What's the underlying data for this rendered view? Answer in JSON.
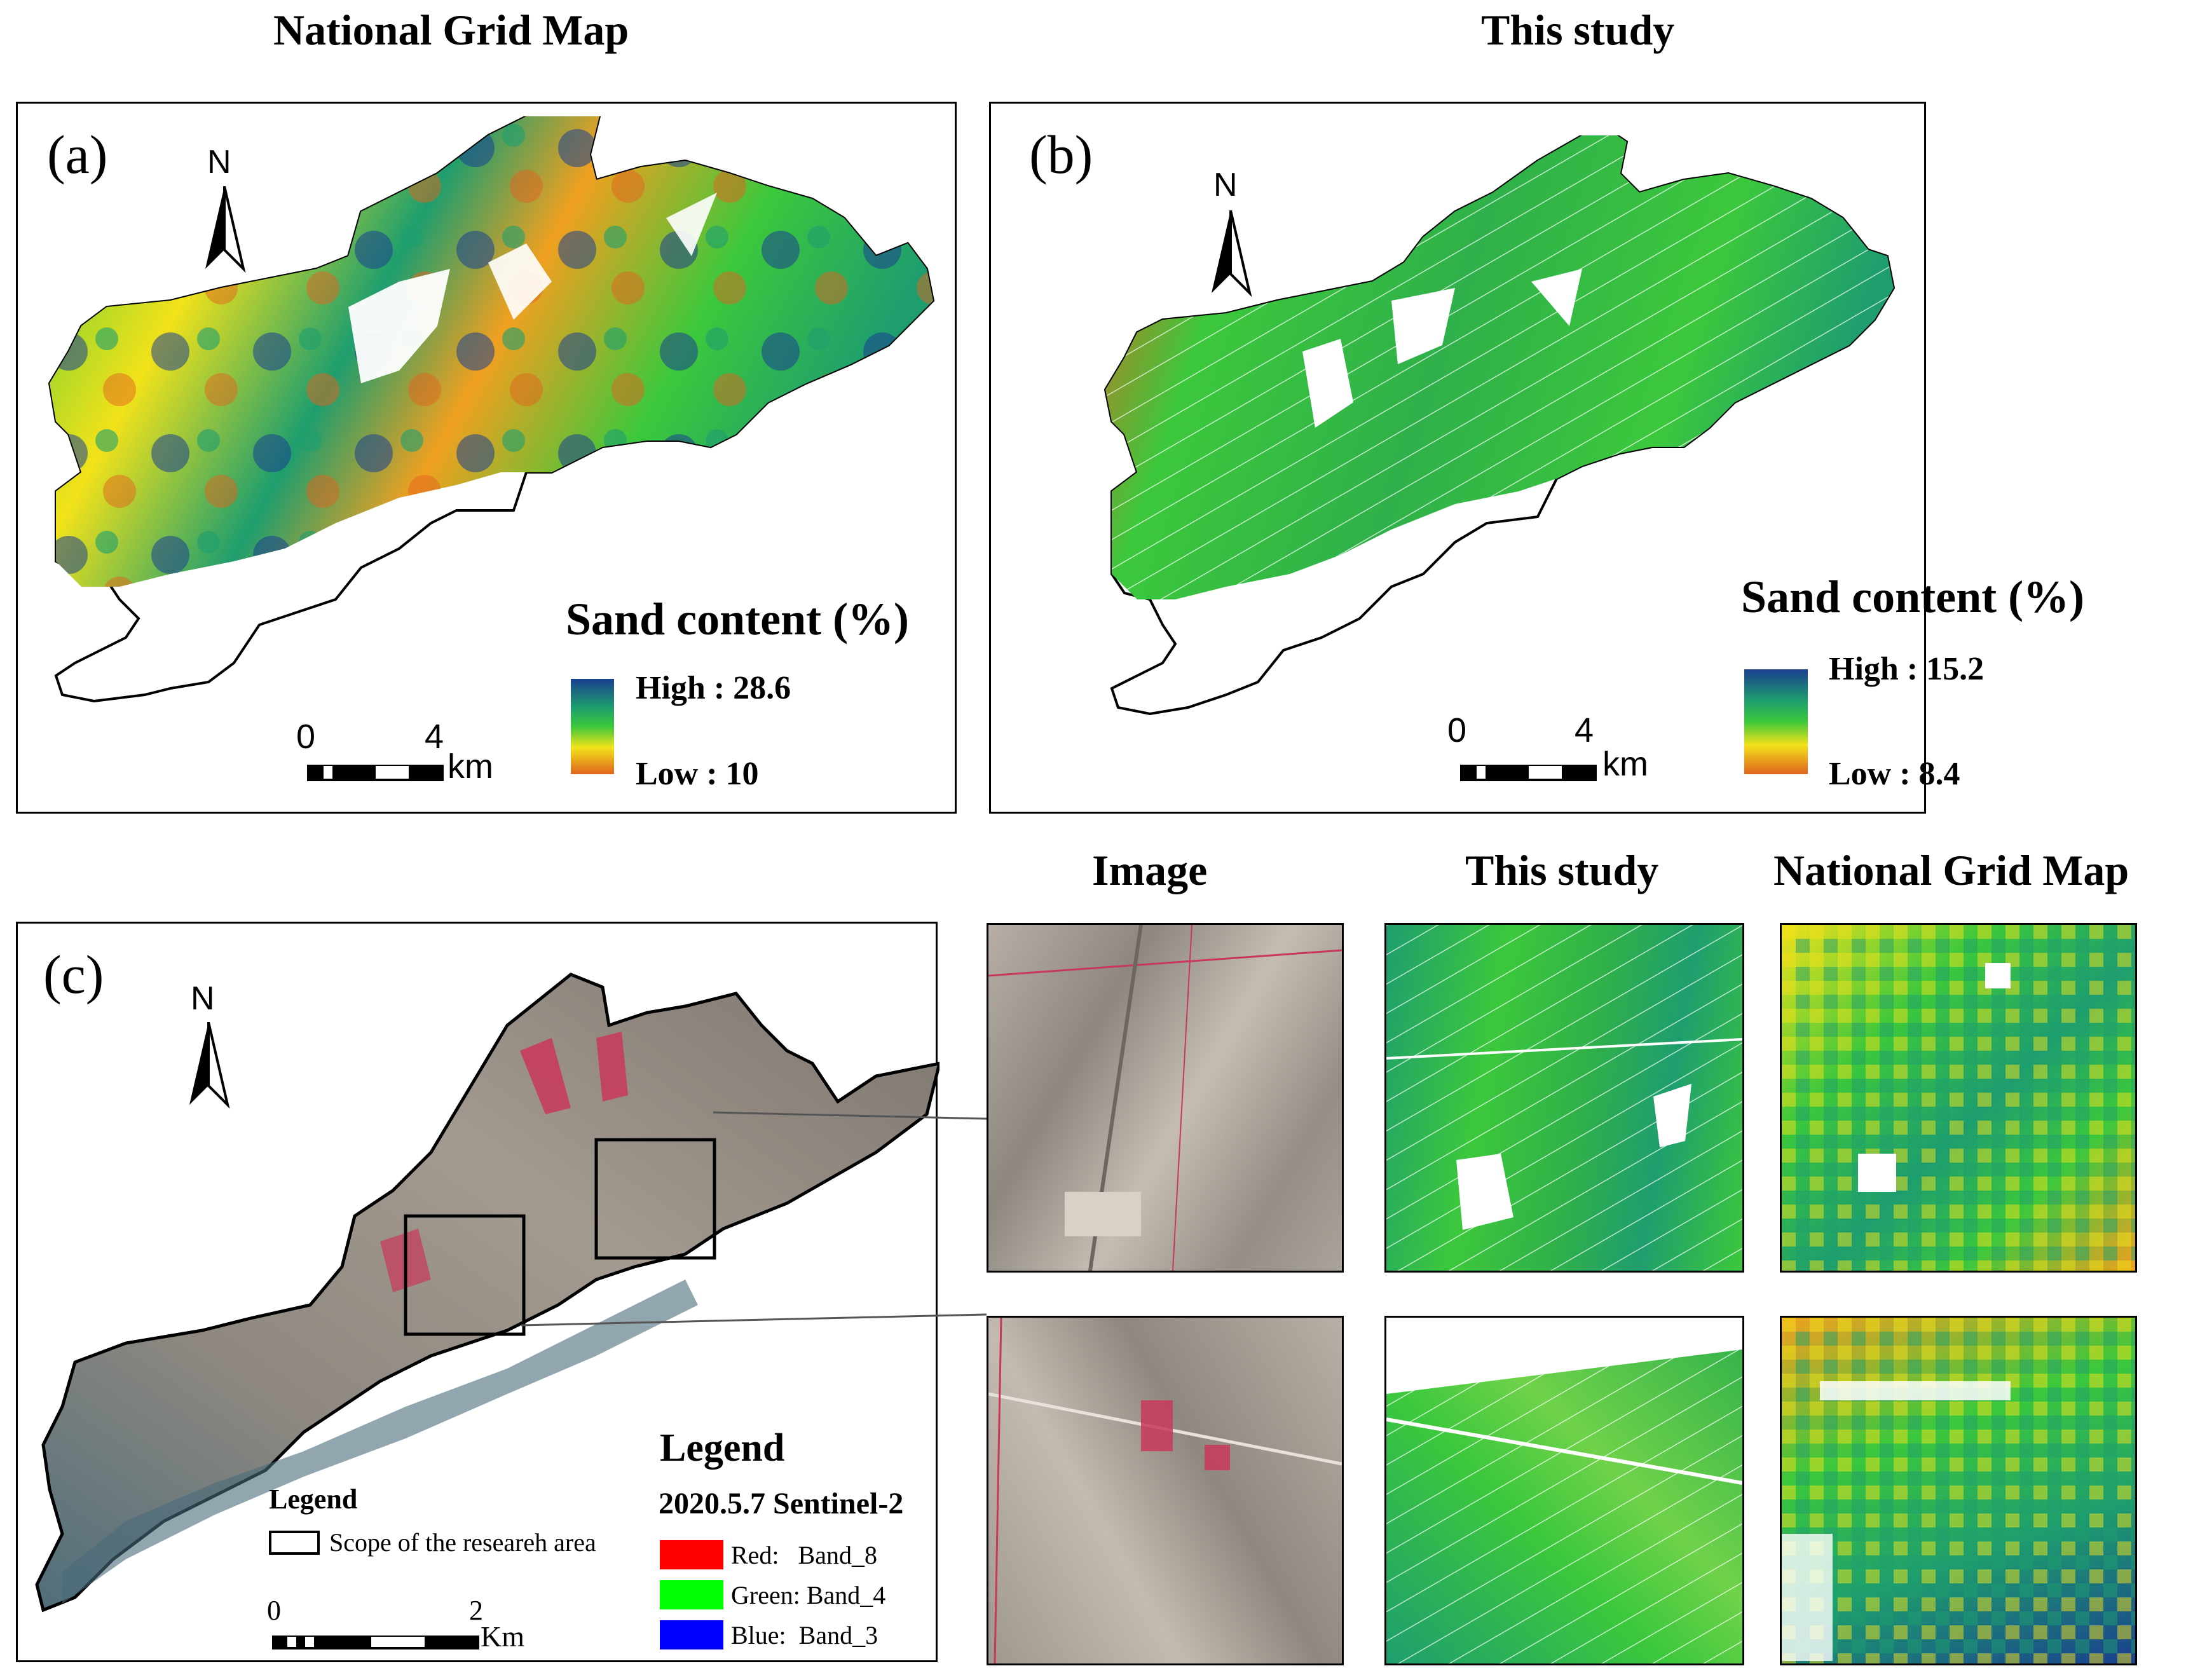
{
  "titles": {
    "national_grid_map": "National Grid Map",
    "this_study": "This study",
    "image": "Image",
    "this_study_2": "This study",
    "national_grid_map_2": "National Grid Map"
  },
  "panel_a": {
    "label": "(a)",
    "north": "N",
    "legend_title": "Sand content (%)",
    "high": "High : 28.6",
    "low": "Low : 10",
    "scale_start": "0",
    "scale_end": "4",
    "scale_unit": "km"
  },
  "panel_b": {
    "label": "(b)",
    "north": "N",
    "legend_title": "Sand content (%)",
    "high": "High : 15.2",
    "low": "Low : 8.4",
    "scale_start": "0",
    "scale_end": "4",
    "scale_unit": "km"
  },
  "panel_c": {
    "label": "(c)",
    "north": "N",
    "legend_heading": "Legend",
    "legend_scope": "Scope of the researeh area",
    "legend2_heading": "Legend",
    "legend2_subtitle": "2020.5.7 Sentinel-2",
    "bands": [
      {
        "label": "Red:   Band_8",
        "color": "#ff0000"
      },
      {
        "label": "Green: Band_4",
        "color": "#00ff00"
      },
      {
        "label": "Blue:  Band_3",
        "color": "#0000ff"
      }
    ],
    "scale_start": "0",
    "scale_end": "2",
    "scale_unit": "Km"
  },
  "colors": {
    "ramp_high": "#1a3f8f",
    "ramp_mid_high": "#1e9e6e",
    "ramp_mid": "#3cc83c",
    "ramp_mid_low": "#f2e21a",
    "ramp_low": "#e0641e",
    "imagery_base": "#9b948c",
    "imagery_red": "#c9375a",
    "imagery_river": "#4a6a7a"
  }
}
